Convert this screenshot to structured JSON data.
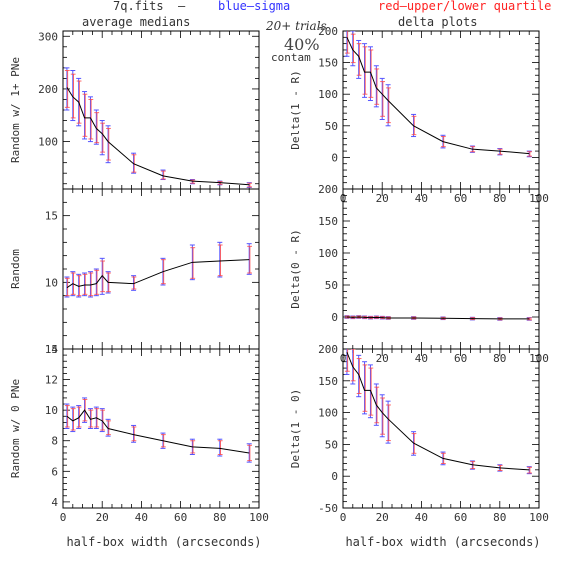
{
  "header": {
    "filename": "7q.fits",
    "dash": "–",
    "blue_label": "blue–sigma",
    "red_label": "red–upper/lower quartile",
    "trials": "20+ trials",
    "percent": "40%",
    "contam": "contam"
  },
  "colors": {
    "median_line": "#000000",
    "sigma_bars": "#5555ff",
    "quartile_bars": "#ff4444"
  },
  "chart_data": [
    {
      "type": "line",
      "title": "average medians",
      "xlabel": "",
      "ylabel": "Random w/ 1+ PNe",
      "xlim": [
        0,
        100
      ],
      "ylim": [
        10,
        310
      ],
      "x_ticks": [
        0,
        20,
        40,
        60,
        80,
        100
      ],
      "x_tick_labels": [],
      "y_ticks": [
        100,
        200,
        300
      ],
      "y_tick_labels": [
        "100",
        "200",
        "300"
      ],
      "x": [
        2,
        5,
        8,
        11,
        14,
        17,
        20,
        23,
        36,
        51,
        66,
        80,
        95
      ],
      "series": [
        {
          "values": [
            203,
            185,
            175,
            145,
            145,
            125,
            115,
            100,
            58,
            35,
            25,
            22,
            18
          ],
          "sigma_low": [
            160,
            140,
            130,
            105,
            100,
            95,
            75,
            60,
            40,
            28,
            20,
            18,
            13
          ],
          "sigma_high": [
            240,
            235,
            220,
            195,
            185,
            160,
            140,
            130,
            78,
            46,
            28,
            25,
            22
          ],
          "q_low": [
            165,
            145,
            135,
            110,
            105,
            98,
            80,
            65,
            42,
            29,
            21,
            19,
            14
          ],
          "q_high": [
            235,
            228,
            215,
            190,
            180,
            155,
            135,
            125,
            75,
            44,
            27,
            24,
            21
          ]
        }
      ]
    },
    {
      "type": "line",
      "title": "delta plots",
      "xlabel": "",
      "ylabel": "Delta(1 - R)",
      "xlim": [
        0,
        100
      ],
      "ylim": [
        -50,
        200
      ],
      "x_ticks": [
        0,
        20,
        40,
        60,
        80,
        100
      ],
      "x_tick_labels": [
        "0",
        "20",
        "40",
        "60",
        "80",
        "100"
      ],
      "y_ticks": [
        -50,
        0,
        50,
        100,
        150,
        200
      ],
      "y_tick_labels": [
        "",
        "0",
        "50",
        "100",
        "150",
        "200"
      ],
      "x": [
        2,
        5,
        8,
        11,
        14,
        17,
        20,
        23,
        36,
        51,
        66,
        80,
        95
      ],
      "series": [
        {
          "values": [
            190,
            170,
            160,
            135,
            135,
            110,
            100,
            90,
            50,
            25,
            13,
            10,
            6
          ],
          "sigma_low": [
            160,
            145,
            125,
            95,
            90,
            80,
            60,
            50,
            33,
            15,
            8,
            4,
            1
          ],
          "sigma_high": [
            215,
            200,
            185,
            180,
            175,
            145,
            125,
            115,
            68,
            35,
            18,
            14,
            10
          ],
          "q_low": [
            165,
            150,
            130,
            100,
            95,
            84,
            65,
            55,
            36,
            17,
            9,
            5,
            2
          ],
          "q_high": [
            210,
            195,
            180,
            175,
            170,
            140,
            120,
            110,
            65,
            33,
            17,
            13,
            9
          ]
        }
      ]
    },
    {
      "type": "line",
      "title": "",
      "xlabel": "",
      "ylabel": "Random",
      "xlim": [
        0,
        100
      ],
      "ylim": [
        5,
        17
      ],
      "x_ticks": [
        0,
        20,
        40,
        60,
        80,
        100
      ],
      "x_tick_labels": [],
      "y_ticks": [
        5,
        10,
        15
      ],
      "y_tick_labels": [
        "5",
        "10",
        "15"
      ],
      "x": [
        2,
        5,
        8,
        11,
        14,
        17,
        20,
        23,
        36,
        51,
        66,
        80,
        95
      ],
      "series": [
        {
          "values": [
            9.6,
            9.9,
            9.7,
            9.8,
            9.8,
            9.9,
            10.5,
            10.0,
            9.9,
            10.8,
            11.5,
            11.6,
            11.7
          ],
          "sigma_low": [
            8.9,
            9.0,
            8.9,
            9.0,
            8.9,
            9.0,
            9.1,
            9.2,
            9.4,
            9.8,
            10.2,
            10.4,
            10.6
          ],
          "sigma_high": [
            10.4,
            10.8,
            10.6,
            10.7,
            10.8,
            11.0,
            11.8,
            10.8,
            10.5,
            11.8,
            12.8,
            13.0,
            12.9
          ],
          "q_low": [
            9.0,
            9.1,
            9.0,
            9.1,
            9.0,
            9.1,
            9.3,
            9.3,
            9.5,
            9.9,
            10.3,
            10.5,
            10.7
          ],
          "q_high": [
            10.3,
            10.7,
            10.5,
            10.6,
            10.7,
            10.9,
            11.6,
            10.7,
            10.4,
            11.7,
            12.6,
            12.8,
            12.7
          ]
        }
      ]
    },
    {
      "type": "line",
      "title": "",
      "xlabel": "",
      "ylabel": "Delta(0 - R)",
      "xlim": [
        0,
        100
      ],
      "ylim": [
        -50,
        200
      ],
      "x_ticks": [
        0,
        20,
        40,
        60,
        80,
        100
      ],
      "x_tick_labels": [
        "0",
        "20",
        "40",
        "60",
        "80",
        "100"
      ],
      "y_ticks": [
        -50,
        0,
        50,
        100,
        150,
        200
      ],
      "y_tick_labels": [
        "",
        "0",
        "50",
        "100",
        "150",
        "200"
      ],
      "x": [
        2,
        5,
        8,
        11,
        14,
        17,
        20,
        23,
        36,
        51,
        66,
        80,
        95
      ],
      "series": [
        {
          "values": [
            0,
            -0.5,
            0,
            -0.5,
            -1,
            -0.5,
            -1,
            -1.5,
            -1.5,
            -2,
            -2.5,
            -3,
            -3
          ],
          "sigma_low": [
            -2,
            -2.5,
            -2,
            -2.5,
            -3,
            -2.5,
            -3,
            -3.5,
            -3.5,
            -4,
            -4.5,
            -5,
            -5
          ],
          "sigma_high": [
            2,
            1.5,
            2,
            1.5,
            1,
            1.5,
            1,
            0.5,
            0.5,
            0,
            -0.5,
            -1,
            -1
          ],
          "q_low": [
            -1.5,
            -2,
            -1.5,
            -2,
            -2.5,
            -2,
            -2.5,
            -3,
            -3,
            -3.5,
            -4,
            -4.5,
            -4.5
          ],
          "q_high": [
            1.5,
            1,
            1.5,
            1,
            0.5,
            1,
            0.5,
            0,
            0,
            -0.5,
            -1,
            -1.5,
            -1.5
          ]
        }
      ]
    },
    {
      "type": "line",
      "title": "",
      "xlabel": "half-box width (arcseconds)",
      "ylabel": "Random w/ 0 PNe",
      "xlim": [
        0,
        100
      ],
      "ylim": [
        3.6,
        14
      ],
      "x_ticks": [
        0,
        20,
        40,
        60,
        80,
        100
      ],
      "x_tick_labels": [
        "0",
        "20",
        "40",
        "60",
        "80",
        "100"
      ],
      "y_ticks": [
        4,
        6,
        8,
        10,
        12,
        14
      ],
      "y_tick_labels": [
        "4",
        "6",
        "8",
        "10",
        "12",
        "14"
      ],
      "x": [
        2,
        5,
        8,
        11,
        14,
        17,
        20,
        23,
        36,
        51,
        66,
        80,
        95
      ],
      "series": [
        {
          "values": [
            9.6,
            9.3,
            9.5,
            10.0,
            9.4,
            9.5,
            9.3,
            8.8,
            8.4,
            8.0,
            7.6,
            7.5,
            7.2
          ],
          "sigma_low": [
            8.8,
            8.6,
            8.8,
            9.2,
            8.8,
            8.8,
            8.6,
            8.3,
            7.9,
            7.5,
            7.1,
            7.0,
            6.6
          ],
          "sigma_high": [
            10.4,
            10.2,
            10.3,
            10.8,
            10.1,
            10.2,
            10.1,
            9.4,
            9.0,
            8.5,
            8.1,
            8.1,
            7.8
          ],
          "q_low": [
            8.9,
            8.7,
            8.9,
            9.3,
            8.9,
            8.9,
            8.7,
            8.4,
            8.0,
            7.6,
            7.2,
            7.1,
            6.7
          ],
          "q_high": [
            10.3,
            10.1,
            10.2,
            10.7,
            10.0,
            10.1,
            10.0,
            9.3,
            8.9,
            8.4,
            8.0,
            8.0,
            7.7
          ]
        }
      ]
    },
    {
      "type": "line",
      "title": "",
      "xlabel": "half-box width (arcseconds)",
      "ylabel": "Delta(1 - 0)",
      "xlim": [
        0,
        100
      ],
      "ylim": [
        -50,
        200
      ],
      "x_ticks": [
        0,
        20,
        40,
        60,
        80,
        100
      ],
      "x_tick_labels": [
        "0",
        "20",
        "40",
        "60",
        "80",
        "100"
      ],
      "y_ticks": [
        -50,
        0,
        50,
        100,
        150,
        200
      ],
      "y_tick_labels": [
        "-50",
        "0",
        "50",
        "100",
        "150",
        "200"
      ],
      "x": [
        2,
        5,
        8,
        11,
        14,
        17,
        20,
        23,
        36,
        51,
        66,
        80,
        95
      ],
      "series": [
        {
          "values": [
            195,
            172,
            160,
            135,
            135,
            112,
            100,
            90,
            52,
            28,
            18,
            13,
            10
          ],
          "sigma_low": [
            160,
            145,
            125,
            98,
            92,
            80,
            62,
            52,
            33,
            18,
            11,
            8,
            4
          ],
          "sigma_high": [
            215,
            205,
            190,
            180,
            175,
            145,
            128,
            118,
            70,
            38,
            24,
            18,
            15
          ],
          "q_low": [
            165,
            150,
            130,
            102,
            96,
            84,
            66,
            56,
            36,
            20,
            12,
            9,
            5
          ],
          "q_high": [
            210,
            200,
            185,
            175,
            170,
            140,
            123,
            112,
            67,
            36,
            23,
            17,
            14
          ]
        }
      ]
    }
  ]
}
